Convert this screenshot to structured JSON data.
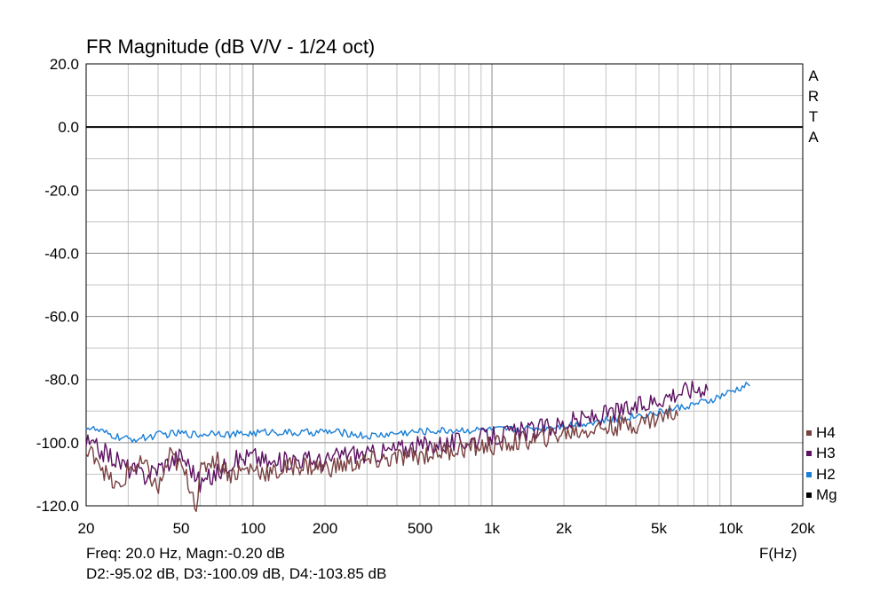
{
  "chart_data": {
    "type": "line",
    "title": "FR Magnitude (dB V/V - 1/24 oct)",
    "xlabel": "F(Hz)",
    "x_scale": "log",
    "xlim": [
      20,
      20000
    ],
    "ylim": [
      -120,
      20
    ],
    "grid": true,
    "x_tick_labels": [
      {
        "value": 20,
        "label": "20"
      },
      {
        "value": 50,
        "label": "50"
      },
      {
        "value": 100,
        "label": "100"
      },
      {
        "value": 200,
        "label": "200"
      },
      {
        "value": 500,
        "label": "500"
      },
      {
        "value": 1000,
        "label": "1k"
      },
      {
        "value": 2000,
        "label": "2k"
      },
      {
        "value": 5000,
        "label": "5k"
      },
      {
        "value": 10000,
        "label": "10k"
      },
      {
        "value": 20000,
        "label": "20k"
      }
    ],
    "y_tick_labels": [
      "20.0",
      "0.0",
      "-20.0",
      "-40.0",
      "-60.0",
      "-80.0",
      "-100.0",
      "-120.0"
    ],
    "legend_position": "bottom-right outside",
    "series": [
      {
        "name": "Mg",
        "color": "#000000",
        "x": [
          20,
          20000
        ],
        "y": [
          0,
          0
        ]
      },
      {
        "name": "H2",
        "color": "#1a7fd6",
        "x": [
          20,
          22,
          25,
          28,
          30,
          35,
          40,
          50,
          60,
          70,
          80,
          100,
          120,
          150,
          200,
          250,
          300,
          400,
          500,
          700,
          1000,
          1500,
          2000,
          3000,
          4000,
          5000,
          6000,
          8000,
          10000,
          12000
        ],
        "y": [
          -95,
          -96,
          -97.5,
          -98.5,
          -99,
          -98.5,
          -97.5,
          -97,
          -97.5,
          -96.5,
          -97.5,
          -97,
          -96.5,
          -97,
          -96.5,
          -97,
          -98,
          -97,
          -96.5,
          -96,
          -96,
          -95.5,
          -94.5,
          -93,
          -91.5,
          -90.5,
          -89,
          -87,
          -84,
          -81.5
        ]
      },
      {
        "name": "H3",
        "color": "#5c1161",
        "x": [
          20,
          25,
          30,
          35,
          40,
          50,
          55,
          60,
          70,
          80,
          100,
          120,
          150,
          200,
          250,
          300,
          400,
          500,
          700,
          1000,
          1500,
          2000,
          3000,
          4000,
          5000,
          6000,
          7000,
          8000
        ],
        "y": [
          -100,
          -104,
          -108,
          -110.5,
          -108,
          -104,
          -108,
          -113,
          -110,
          -106,
          -104,
          -107,
          -105,
          -106,
          -103,
          -104,
          -102,
          -101,
          -100,
          -98,
          -96,
          -94,
          -91,
          -89,
          -86,
          -84,
          -83,
          -82
        ]
      },
      {
        "name": "H4",
        "color": "#7a4040",
        "x": [
          20,
          22,
          25,
          28,
          30,
          35,
          40,
          45,
          50,
          55,
          58,
          60,
          65,
          70,
          80,
          100,
          120,
          150,
          200,
          250,
          300,
          400,
          500,
          700,
          1000,
          1500,
          2000,
          3000,
          4000,
          5000,
          6000
        ],
        "y": [
          -104,
          -103.5,
          -112,
          -115,
          -108,
          -107,
          -115,
          -104,
          -108,
          -114,
          -120,
          -110,
          -106,
          -105,
          -110,
          -108,
          -110,
          -107,
          -108,
          -107,
          -106,
          -105,
          -104,
          -102,
          -101,
          -99,
          -97,
          -95,
          -94,
          -92,
          -90
        ]
      }
    ]
  },
  "header": {
    "title": "FR Magnitude (dB V/V - 1/24 oct)"
  },
  "brand": [
    "A",
    "R",
    "T",
    "A"
  ],
  "axis": {
    "x_unit_label": "F(Hz)"
  },
  "legend": [
    {
      "label": "H4",
      "color": "#7a4040"
    },
    {
      "label": "H3",
      "color": "#5c1161"
    },
    {
      "label": "H2",
      "color": "#1a7fd6"
    },
    {
      "label": "Mg",
      "color": "#000000"
    }
  ],
  "readout": {
    "line1": "Freq: 20.0 Hz, Magn:-0.20 dB",
    "line2": "D2:-95.02 dB, D3:-100.09 dB, D4:-103.85 dB"
  }
}
